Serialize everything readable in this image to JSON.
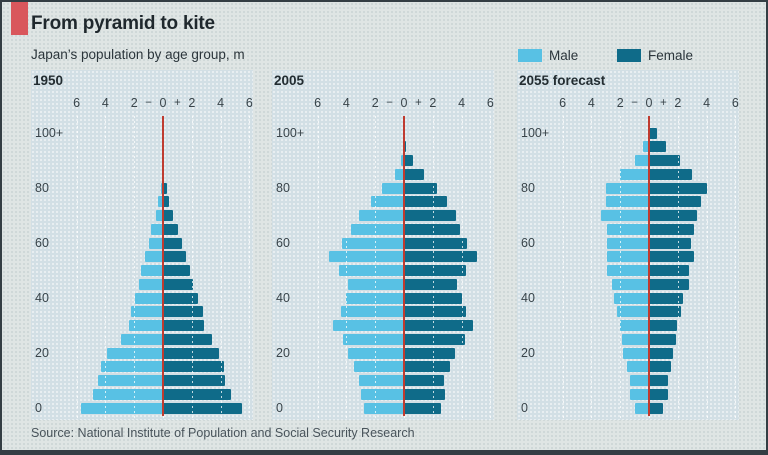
{
  "header": {
    "title": "From pyramid to kite",
    "subtitle": "Japan’s population by age group, m"
  },
  "legend": {
    "male_label": "Male",
    "female_label": "Female"
  },
  "source": "Source: National Institute of Population and Social Security Research",
  "colors": {
    "male": "#58c1e4",
    "female": "#0f6b89",
    "panel_bg": "#d2dfe5",
    "outer_bg": "#dfe5e4",
    "accent_tab": "#d9575c",
    "zero_line": "#bf3b30",
    "grid_line": "#ffffff",
    "title_text": "#1f282d",
    "body_text": "#2b353b",
    "axis_text": "#39444a",
    "source_text": "#49545b"
  },
  "chart_data": {
    "type": "bar",
    "variant": "population-pyramid",
    "unit": "millions of people",
    "xlim": [
      -6,
      6
    ],
    "grid": true,
    "age_groups": [
      "0-4",
      "5-9",
      "10-14",
      "15-19",
      "20-24",
      "25-29",
      "30-34",
      "35-39",
      "40-44",
      "45-49",
      "50-54",
      "55-59",
      "60-64",
      "65-69",
      "70-74",
      "75-79",
      "80-84",
      "85-89",
      "90-94",
      "95-99",
      "100+"
    ],
    "x_ticks": [
      {
        "label": "6",
        "unit": -6
      },
      {
        "label": "4",
        "unit": -4
      },
      {
        "label": "2",
        "unit": -2
      },
      {
        "label": "−",
        "unit": -1
      },
      {
        "label": "0",
        "unit": 0
      },
      {
        "label": "+",
        "unit": 1
      },
      {
        "label": "2",
        "unit": 2
      },
      {
        "label": "4",
        "unit": 4
      },
      {
        "label": "6",
        "unit": 6
      }
    ],
    "y_ticks": [
      {
        "label": "100+",
        "age": 100
      },
      {
        "label": "80",
        "age": 80
      },
      {
        "label": "60",
        "age": 60
      },
      {
        "label": "40",
        "age": 40
      },
      {
        "label": "20",
        "age": 20
      },
      {
        "label": "0",
        "age": 0
      }
    ],
    "panels": [
      {
        "title": "1950",
        "series": [
          {
            "name": "Male",
            "values": [
              5.7,
              4.85,
              4.5,
              4.3,
              3.9,
              2.9,
              2.35,
              2.25,
              1.95,
              1.7,
              1.55,
              1.25,
              1.0,
              0.8,
              0.5,
              0.33,
              0.15,
              0.05,
              0.02,
              0.0,
              0.0
            ]
          },
          {
            "name": "Female",
            "values": [
              5.5,
              4.7,
              4.3,
              4.25,
              3.9,
              3.4,
              2.85,
              2.75,
              2.45,
              2.1,
              1.9,
              1.6,
              1.35,
              1.05,
              0.7,
              0.45,
              0.25,
              0.1,
              0.03,
              0.01,
              0.0
            ]
          }
        ]
      },
      {
        "title": "2005",
        "series": [
          {
            "name": "Male",
            "values": [
              2.8,
              3.0,
              3.1,
              3.5,
              3.9,
              4.25,
              4.9,
              4.4,
              4.05,
              3.9,
              4.5,
              5.2,
              4.3,
              3.65,
              3.1,
              2.3,
              1.5,
              0.65,
              0.2,
              0.05,
              0.01
            ]
          },
          {
            "name": "Female",
            "values": [
              2.6,
              2.85,
              2.8,
              3.2,
              3.55,
              4.25,
              4.8,
              4.3,
              4.0,
              3.7,
              4.3,
              5.1,
              4.35,
              3.9,
              3.6,
              3.0,
              2.3,
              1.4,
              0.6,
              0.15,
              0.04
            ]
          }
        ]
      },
      {
        "title": "2055 forecast",
        "series": [
          {
            "name": "Male",
            "values": [
              1.0,
              1.3,
              1.3,
              1.55,
              1.8,
              1.85,
              2.0,
              2.25,
              2.4,
              2.55,
              2.9,
              2.95,
              2.9,
              2.95,
              3.35,
              3.0,
              3.0,
              2.0,
              1.0,
              0.4,
              0.1
            ]
          },
          {
            "name": "Female",
            "values": [
              1.0,
              1.3,
              1.3,
              1.5,
              1.7,
              1.85,
              1.95,
              2.25,
              2.35,
              2.8,
              2.8,
              3.1,
              2.9,
              3.15,
              3.35,
              3.6,
              4.0,
              3.0,
              2.15,
              1.15,
              0.55
            ]
          }
        ]
      }
    ]
  }
}
